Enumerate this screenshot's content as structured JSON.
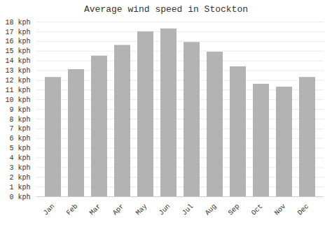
{
  "chart_data": {
    "type": "bar",
    "title": "Average wind speed in Stockton",
    "categories": [
      "Jan",
      "Feb",
      "Mar",
      "Apr",
      "May",
      "Jun",
      "Jul",
      "Aug",
      "Sep",
      "Oct",
      "Nov",
      "Dec"
    ],
    "values": [
      12.3,
      13.1,
      14.5,
      15.6,
      17.0,
      17.3,
      15.9,
      14.9,
      13.4,
      11.6,
      11.3,
      12.3
    ],
    "color": "#b3b3b3",
    "ylim": [
      0,
      18
    ],
    "yticks": [
      {
        "value": 0,
        "label": "0 kph"
      },
      {
        "value": 1,
        "label": "1 kph"
      },
      {
        "value": 2,
        "label": "2 kph"
      },
      {
        "value": 3,
        "label": "3 kph"
      },
      {
        "value": 4,
        "label": "4 kph"
      },
      {
        "value": 5,
        "label": "5 kph"
      },
      {
        "value": 6,
        "label": "6 kph"
      },
      {
        "value": 7,
        "label": "7 kph"
      },
      {
        "value": 8,
        "label": "8 kph"
      },
      {
        "value": 9,
        "label": "9 kph"
      },
      {
        "value": 10,
        "label": "10 kph"
      },
      {
        "value": 11,
        "label": "11 kph"
      },
      {
        "value": 12,
        "label": "12 kph"
      },
      {
        "value": 13,
        "label": "13 kph"
      },
      {
        "value": 14,
        "label": "14 kph"
      },
      {
        "value": 15,
        "label": "15 kph"
      },
      {
        "value": 16,
        "label": "16 kph"
      },
      {
        "value": 17,
        "label": "17 kph"
      },
      {
        "value": 18,
        "label": "18 kph"
      }
    ],
    "grid": true
  }
}
